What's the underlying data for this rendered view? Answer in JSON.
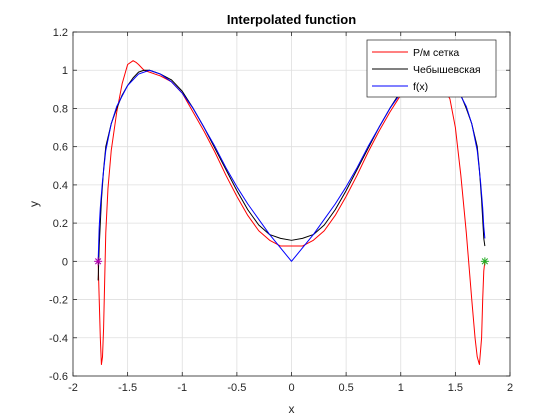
{
  "chart_data": {
    "type": "line",
    "title": "Interpolated function",
    "xlabel": "x",
    "ylabel": "y",
    "xlim": [
      -2,
      2
    ],
    "ylim": [
      -0.6,
      1.2
    ],
    "x_ticks": [
      -2,
      -1.5,
      -1,
      -0.5,
      0,
      0.5,
      1,
      1.5,
      2
    ],
    "x_tick_labels": [
      "-2",
      "-1.5",
      "-1",
      "-0.5",
      "0",
      "0.5",
      "1",
      "1.5",
      "2"
    ],
    "y_ticks": [
      -0.6,
      -0.4,
      -0.2,
      0,
      0.2,
      0.4,
      0.6,
      0.8,
      1,
      1.2
    ],
    "y_tick_labels": [
      "-0.6",
      "-0.4",
      "-0.2",
      "0",
      "0.2",
      "0.4",
      "0.6",
      "0.8",
      "1",
      "1.2"
    ],
    "grid": true,
    "legend_position": "top-right",
    "series": [
      {
        "name": "Р/м сетка",
        "color": "#ff0000",
        "x": [
          -1.77,
          -1.76,
          -1.75,
          -1.74,
          -1.73,
          -1.72,
          -1.71,
          -1.7,
          -1.68,
          -1.65,
          -1.6,
          -1.55,
          -1.5,
          -1.45,
          -1.42,
          -1.4,
          -1.35,
          -1.3,
          -1.25,
          -1.2,
          -1.1,
          -1.0,
          -0.9,
          -0.8,
          -0.7,
          -0.6,
          -0.5,
          -0.4,
          -0.3,
          -0.2,
          -0.1,
          0,
          0.1,
          0.2,
          0.3,
          0.4,
          0.5,
          0.6,
          0.7,
          0.8,
          0.9,
          1.0,
          1.1,
          1.2,
          1.3,
          1.4,
          1.45,
          1.5,
          1.55,
          1.6,
          1.65,
          1.68,
          1.7,
          1.72,
          1.74,
          1.75,
          1.76,
          1.77
        ],
        "y": [
          0.0,
          -0.2,
          -0.4,
          -0.54,
          -0.5,
          -0.35,
          -0.1,
          0.15,
          0.38,
          0.58,
          0.78,
          0.93,
          1.03,
          1.05,
          1.04,
          1.03,
          1.0,
          0.99,
          0.98,
          0.97,
          0.94,
          0.88,
          0.78,
          0.68,
          0.57,
          0.45,
          0.34,
          0.24,
          0.16,
          0.11,
          0.08,
          0.08,
          0.08,
          0.11,
          0.16,
          0.24,
          0.34,
          0.45,
          0.57,
          0.68,
          0.78,
          0.87,
          0.93,
          0.94,
          0.93,
          0.9,
          0.85,
          0.7,
          0.45,
          0.15,
          -0.2,
          -0.4,
          -0.5,
          -0.54,
          -0.4,
          -0.2,
          -0.05,
          0.0
        ]
      },
      {
        "name": "Чебышевская",
        "color": "#000000",
        "x": [
          -1.77,
          -1.76,
          -1.74,
          -1.72,
          -1.7,
          -1.65,
          -1.6,
          -1.55,
          -1.5,
          -1.45,
          -1.4,
          -1.35,
          -1.3,
          -1.25,
          -1.2,
          -1.1,
          -1.0,
          -0.9,
          -0.8,
          -0.7,
          -0.6,
          -0.5,
          -0.4,
          -0.3,
          -0.2,
          -0.1,
          0,
          0.1,
          0.2,
          0.3,
          0.4,
          0.5,
          0.6,
          0.7,
          0.8,
          0.9,
          1.0,
          1.1,
          1.2,
          1.3,
          1.4,
          1.45,
          1.5,
          1.55,
          1.6,
          1.65,
          1.7,
          1.72,
          1.74,
          1.76,
          1.77
        ],
        "y": [
          -0.1,
          0.08,
          0.32,
          0.48,
          0.6,
          0.72,
          0.8,
          0.87,
          0.92,
          0.96,
          0.99,
          1.0,
          1.0,
          0.99,
          0.98,
          0.95,
          0.89,
          0.8,
          0.7,
          0.59,
          0.48,
          0.37,
          0.27,
          0.19,
          0.14,
          0.12,
          0.11,
          0.12,
          0.14,
          0.19,
          0.27,
          0.37,
          0.48,
          0.59,
          0.7,
          0.8,
          0.89,
          0.95,
          0.98,
          0.99,
          0.99,
          0.96,
          0.92,
          0.87,
          0.8,
          0.72,
          0.6,
          0.48,
          0.32,
          0.12,
          0.08
        ]
      },
      {
        "name": "f(x)",
        "color": "#0000ff",
        "x": [
          -1.77,
          -1.76,
          -1.75,
          -1.73,
          -1.7,
          -1.65,
          -1.6,
          -1.5,
          -1.4,
          -1.3,
          -1.2,
          -1.1,
          -1.0,
          -0.9,
          -0.8,
          -0.7,
          -0.6,
          -0.5,
          -0.4,
          -0.3,
          -0.2,
          -0.1,
          0,
          0.1,
          0.2,
          0.3,
          0.4,
          0.5,
          0.6,
          0.7,
          0.8,
          0.9,
          1.0,
          1.1,
          1.2,
          1.3,
          1.4,
          1.5,
          1.6,
          1.65,
          1.7,
          1.73,
          1.75,
          1.76,
          1.77
        ],
        "y": [
          0.0,
          0.18,
          0.28,
          0.42,
          0.58,
          0.72,
          0.81,
          0.92,
          0.98,
          1.0,
          0.98,
          0.94,
          0.88,
          0.8,
          0.7,
          0.6,
          0.49,
          0.39,
          0.3,
          0.22,
          0.14,
          0.07,
          0.0,
          0.07,
          0.14,
          0.22,
          0.3,
          0.39,
          0.49,
          0.6,
          0.7,
          0.8,
          0.88,
          0.94,
          0.98,
          1.0,
          0.98,
          0.92,
          0.81,
          0.72,
          0.58,
          0.42,
          0.28,
          0.18,
          0.12
        ]
      }
    ],
    "markers": [
      {
        "symbol": "*",
        "color": "#b000b0",
        "x": -1.77,
        "y": 0
      },
      {
        "symbol": "*",
        "color": "#22aa22",
        "x": 1.77,
        "y": 0
      }
    ]
  }
}
